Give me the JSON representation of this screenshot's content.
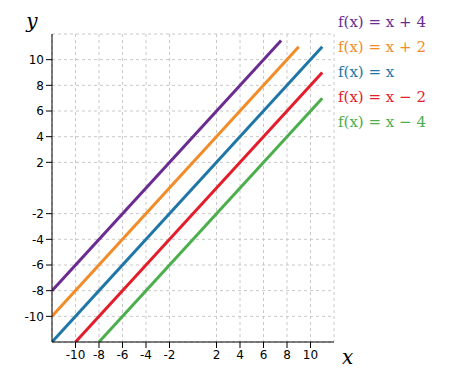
{
  "chart_data": {
    "type": "line",
    "x_label": "x",
    "y_label": "y",
    "xlim": [
      -12,
      12
    ],
    "ylim": [
      -12,
      12
    ],
    "xticks": [
      -10,
      -8,
      -6,
      -4,
      -2,
      2,
      4,
      6,
      8,
      10
    ],
    "yticks": [
      -10,
      -8,
      -6,
      -4,
      -2,
      2,
      4,
      6,
      8,
      10
    ],
    "grid": true,
    "legend": "upper right",
    "series": [
      {
        "name": "f(x) = x + 4",
        "color": "#6a2c91",
        "x": [
          -12,
          7.5
        ],
        "values": [
          -8,
          11.5
        ]
      },
      {
        "name": "f(x) = x + 2",
        "color": "#f28c28",
        "x": [
          -12,
          9
        ],
        "values": [
          -10,
          11
        ]
      },
      {
        "name": "f(x) = x",
        "color": "#1f77a8",
        "x": [
          -12,
          11
        ],
        "values": [
          -12,
          11
        ]
      },
      {
        "name": "f(x) = x − 2",
        "color": "#e31d2b",
        "x": [
          -10,
          11
        ],
        "values": [
          -12,
          9
        ]
      },
      {
        "name": "f(x) = x − 4",
        "color": "#4cae4c",
        "x": [
          -8,
          11
        ],
        "values": [
          -12,
          7
        ]
      }
    ]
  }
}
